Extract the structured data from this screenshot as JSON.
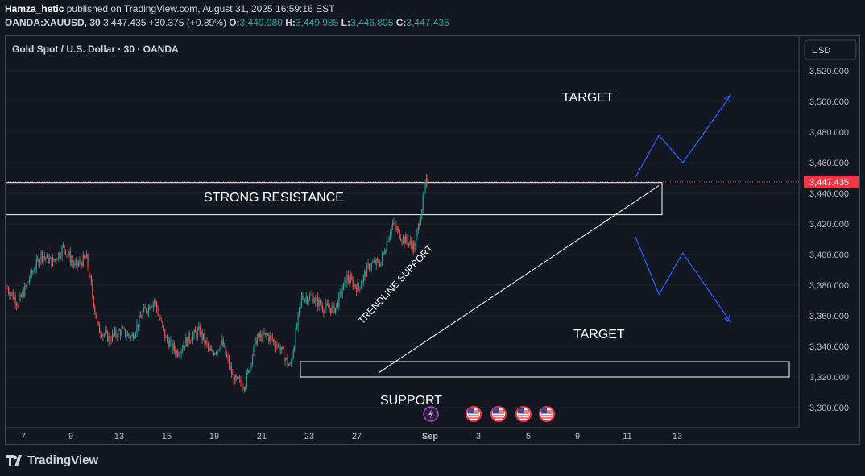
{
  "header": {
    "author": "Hamza_hetic",
    "published_text": "published on TradingView.com, August 31, 2025 16:59:16 EST",
    "symbol": "OANDA:XAUUSD, 30",
    "last": "3,447.435",
    "change": "+30.375 (+0.89%)",
    "o_label": "O:",
    "o": "3,449.980",
    "h_label": "H:",
    "h": "3,449.985",
    "l_label": "L:",
    "l": "3,446.805",
    "c_label": "C:",
    "c": "3,447.435"
  },
  "legend_title": "Gold Spot / U.S. Dollar · 30 · OANDA",
  "currency_button": "USD",
  "footer_brand": "TradingView",
  "colors": {
    "background": "#131722",
    "up": "#26a69a",
    "down": "#ef5350",
    "price_tag": "#f23645",
    "arrow": "#2962ff",
    "annotation": "#ffffff"
  },
  "chart_data": {
    "type": "candlestick",
    "title": "Gold Spot / U.S. Dollar · 30 · OANDA",
    "ylim": [
      3290,
      3530
    ],
    "y_ticks": [
      "3,300.000",
      "3,320.000",
      "3,340.000",
      "3,360.000",
      "3,380.000",
      "3,400.000",
      "3,420.000",
      "3,440.000",
      "3,460.000",
      "3,480.000",
      "3,500.000",
      "3,520.000"
    ],
    "x_ticks": [
      "7",
      "9",
      "13",
      "15",
      "19",
      "21",
      "23",
      "27",
      "Sep",
      "3",
      "5",
      "9",
      "11",
      "13"
    ],
    "last_price_label": "3,447.435",
    "price_path": [
      [
        "Aug 7",
        3378
      ],
      [
        "Aug 7",
        3368
      ],
      [
        "Aug 8",
        3385
      ],
      [
        "Aug 8",
        3400
      ],
      [
        "Aug 8",
        3395
      ],
      [
        "Aug 8",
        3405
      ],
      [
        "Aug 9",
        3392
      ],
      [
        "Aug 9",
        3398
      ],
      [
        "Aug 11",
        3352
      ],
      [
        "Aug 12",
        3345
      ],
      [
        "Aug 13",
        3350
      ],
      [
        "Aug 13",
        3346
      ],
      [
        "Aug 14",
        3362
      ],
      [
        "Aug 14",
        3370
      ],
      [
        "Aug 15",
        3345
      ],
      [
        "Aug 15",
        3336
      ],
      [
        "Aug 18",
        3345
      ],
      [
        "Aug 18",
        3350
      ],
      [
        "Aug 19",
        3335
      ],
      [
        "Aug 19",
        3342
      ],
      [
        "Aug 20",
        3318
      ],
      [
        "Aug 20",
        3315
      ],
      [
        "Aug 21",
        3345
      ],
      [
        "Aug 21",
        3347
      ],
      [
        "Aug 22",
        3340
      ],
      [
        "Aug 22",
        3326
      ],
      [
        "Aug 22",
        3372
      ],
      [
        "Aug 25",
        3372
      ],
      [
        "Aug 25",
        3365
      ],
      [
        "Aug 26",
        3365
      ],
      [
        "Aug 27",
        3385
      ],
      [
        "Aug 27",
        3378
      ],
      [
        "Aug 28",
        3393
      ],
      [
        "Aug 28",
        3395
      ],
      [
        "Aug 29",
        3420
      ],
      [
        "Aug 29",
        3410
      ],
      [
        "Aug 29",
        3405
      ],
      [
        "Aug 29",
        3447
      ]
    ],
    "annotations": {
      "resistance_label": "STRONG RESISTANCE",
      "support_label": "SUPPORT",
      "trendline_label": "TRENDLINE SUPPORT",
      "target_up_label": "TARGET",
      "target_down_label": "TARGET",
      "resistance_zone": [
        3426,
        3447
      ],
      "support_zone": [
        3320,
        3330
      ],
      "trendline": [
        [
          "Aug 22",
          3323
        ],
        [
          "Sep 3",
          3445
        ]
      ],
      "bullish_path": [
        [
          "Sep 2",
          3450
        ],
        [
          "Sep 3",
          3478
        ],
        [
          "Sep 4",
          3460
        ],
        [
          "Sep 6",
          3504
        ]
      ],
      "bearish_path": [
        [
          "Sep 2",
          3412
        ],
        [
          "Sep 3",
          3374
        ],
        [
          "Sep 4",
          3401
        ],
        [
          "Sep 6",
          3356
        ]
      ]
    },
    "event_icons": [
      "flash-event-icon",
      "us-flag-event-icon",
      "us-flag-event-icon",
      "us-flag-event-icon",
      "us-flag-event-icon"
    ]
  }
}
